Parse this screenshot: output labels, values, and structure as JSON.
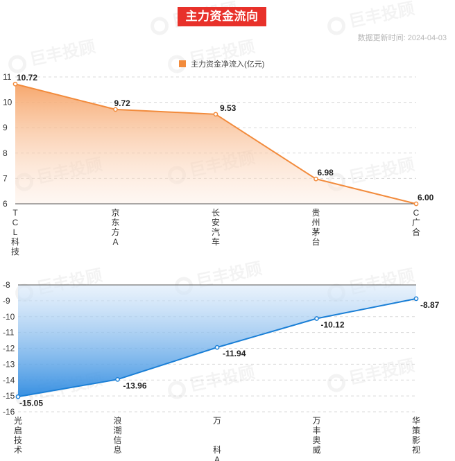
{
  "header": {
    "title": "主力资金流向",
    "update_label": "数据更新时间:",
    "update_date": "2024-04-03"
  },
  "watermark": {
    "text": "巨丰投顾"
  },
  "legend": {
    "label": "主力资金净流入(亿元)",
    "color": "#f28b3c"
  },
  "chart_data": [
    {
      "type": "area",
      "categories": [
        "TCL科技",
        "京东方A",
        "长安汽车",
        "贵州茅台",
        "C广合"
      ],
      "series": [
        {
          "name": "主力资金净流入(亿元)",
          "values": [
            10.72,
            9.72,
            9.53,
            6.98,
            6.0
          ]
        }
      ],
      "ylim": [
        6,
        11
      ],
      "yticks": [
        "6",
        "7",
        "8",
        "9",
        "10",
        "11"
      ],
      "data_labels": [
        "10.72",
        "9.72",
        "9.53",
        "6.98",
        "6.00"
      ],
      "grid": true,
      "color": "#f28b3c"
    },
    {
      "type": "area",
      "categories": [
        "光启技术",
        "浪潮信息",
        "万科A",
        "万丰奥威",
        "华策影视"
      ],
      "series": [
        {
          "values": [
            -15.05,
            -13.96,
            -11.94,
            -10.12,
            -8.87
          ]
        }
      ],
      "ylim": [
        -16,
        -8
      ],
      "yticks": [
        "-16",
        "-15",
        "-14",
        "-13",
        "-12",
        "-11",
        "-10",
        "-9",
        "-8"
      ],
      "data_labels": [
        "-15.05",
        "-13.96",
        "-11.94",
        "-10.12",
        "-8.87"
      ],
      "grid": true,
      "color": "#1a7fd6"
    }
  ]
}
